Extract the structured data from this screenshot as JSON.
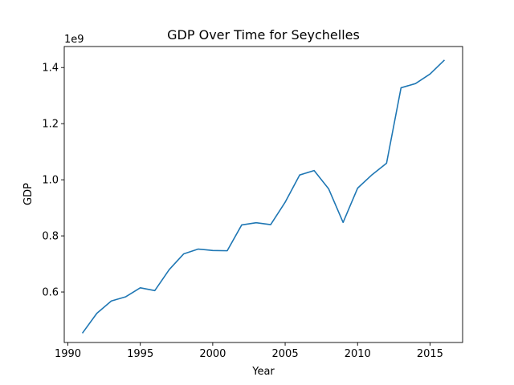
{
  "chart_data": {
    "type": "line",
    "title": "GDP Over Time for Seychelles",
    "xlabel": "Year",
    "ylabel": "GDP",
    "y_offset_label": "1e9",
    "xlim": [
      1989.75,
      2017.25
    ],
    "ylim": [
      0.42,
      1.475
    ],
    "x_ticks": [
      1990,
      1995,
      2000,
      2005,
      2010,
      2015
    ],
    "y_ticks": [
      0.6,
      0.8,
      1.0,
      1.2,
      1.4
    ],
    "y_tick_labels": [
      "0.6",
      "0.8",
      "1.0",
      "1.2",
      "1.4"
    ],
    "grid": false,
    "line_color": "#1f77b4",
    "series": [
      {
        "x": [
          1991,
          1992,
          1993,
          1994,
          1995,
          1996,
          1997,
          1998,
          1999,
          2000,
          2001,
          2002,
          2003,
          2004,
          2005,
          2006,
          2007,
          2008,
          2009,
          2010,
          2011,
          2012,
          2013,
          2014,
          2015,
          2016
        ],
        "values": [
          0.453,
          0.524,
          0.568,
          0.583,
          0.615,
          0.605,
          0.68,
          0.736,
          0.753,
          0.748,
          0.747,
          0.839,
          0.847,
          0.84,
          0.92,
          1.017,
          1.033,
          0.968,
          0.848,
          0.97,
          1.018,
          1.059,
          1.328,
          1.343,
          1.377,
          1.427
        ]
      }
    ]
  }
}
